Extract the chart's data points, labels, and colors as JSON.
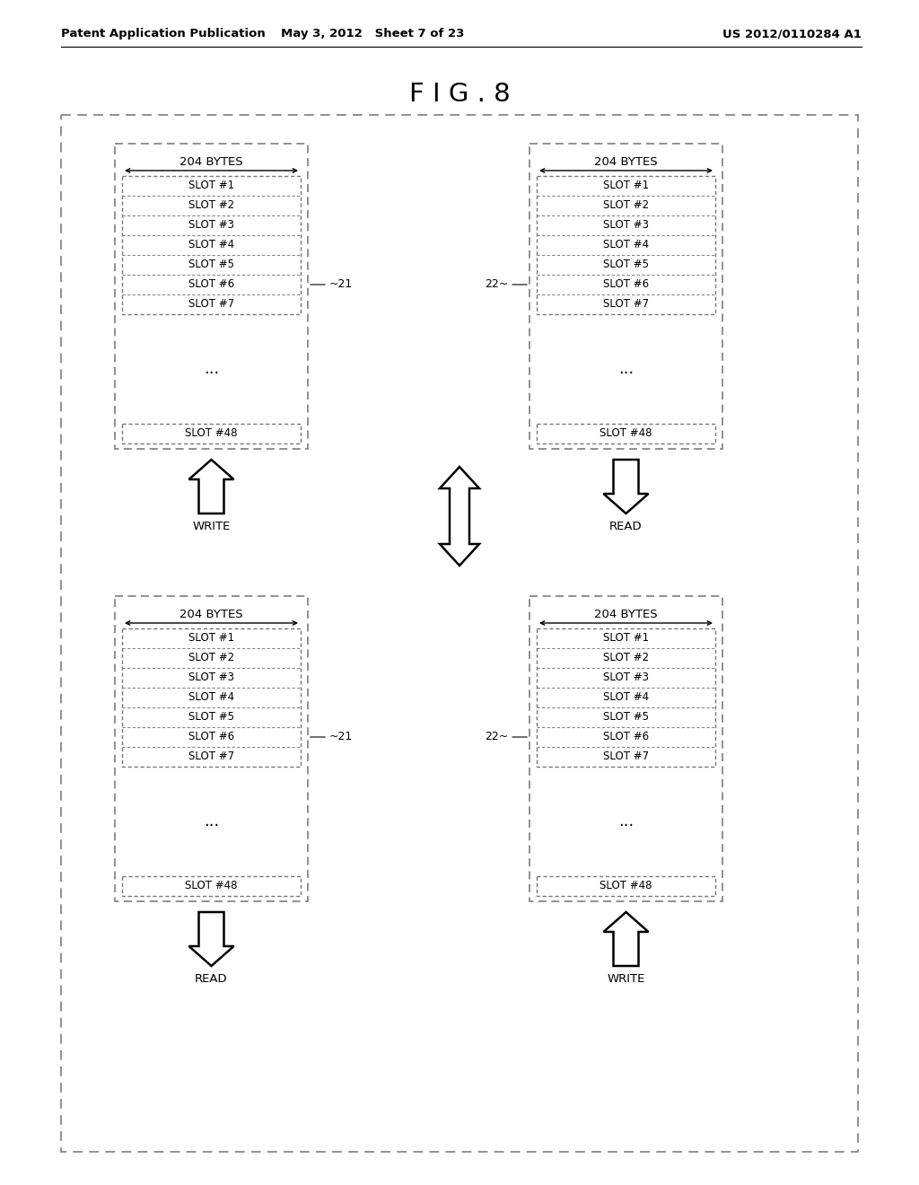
{
  "title": "F I G . 8",
  "header_left": "Patent Application Publication",
  "header_mid": "May 3, 2012   Sheet 7 of 23",
  "header_right": "US 2012/0110284 A1",
  "slots": [
    "SLOT #1",
    "SLOT #2",
    "SLOT #3",
    "SLOT #4",
    "SLOT #5",
    "SLOT #6",
    "SLOT #7"
  ],
  "dots": "...",
  "last_slot": "SLOT #48",
  "bytes_label": "204 BYTES",
  "label_21": "21",
  "label_22": "22",
  "top_left_label": "WRITE",
  "top_right_label": "READ",
  "bottom_left_label": "READ",
  "bottom_right_label": "WRITE",
  "bg_color": "#ffffff",
  "text_color": "#000000"
}
